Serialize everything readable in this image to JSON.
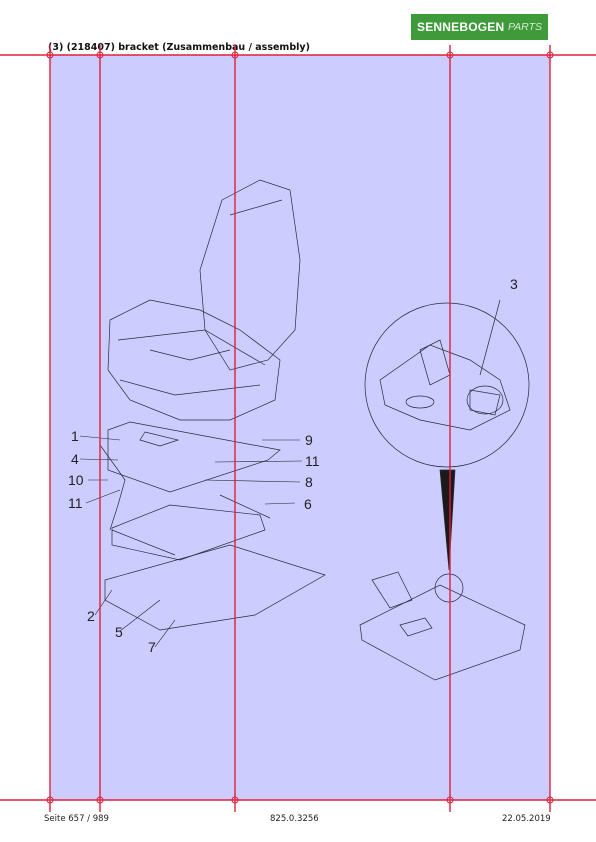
{
  "header": {
    "title": "(3) (218407) bracket (Zusammenbau / assembly)",
    "logo_main": "SENNEBOGEN",
    "logo_sub": "PARTS"
  },
  "drawing": {
    "callouts": [
      "1",
      "2",
      "3",
      "4",
      "5",
      "6",
      "7",
      "8",
      "9",
      "10",
      "11",
      "11"
    ]
  },
  "footer": {
    "page": "Seite 657 / 989",
    "doc_number": "825.0.3256",
    "date": "22.05.2019"
  },
  "colors": {
    "panel": "#ccccff",
    "grid_lines": "#e0203a",
    "logo_bg": "#3f9a3a"
  }
}
